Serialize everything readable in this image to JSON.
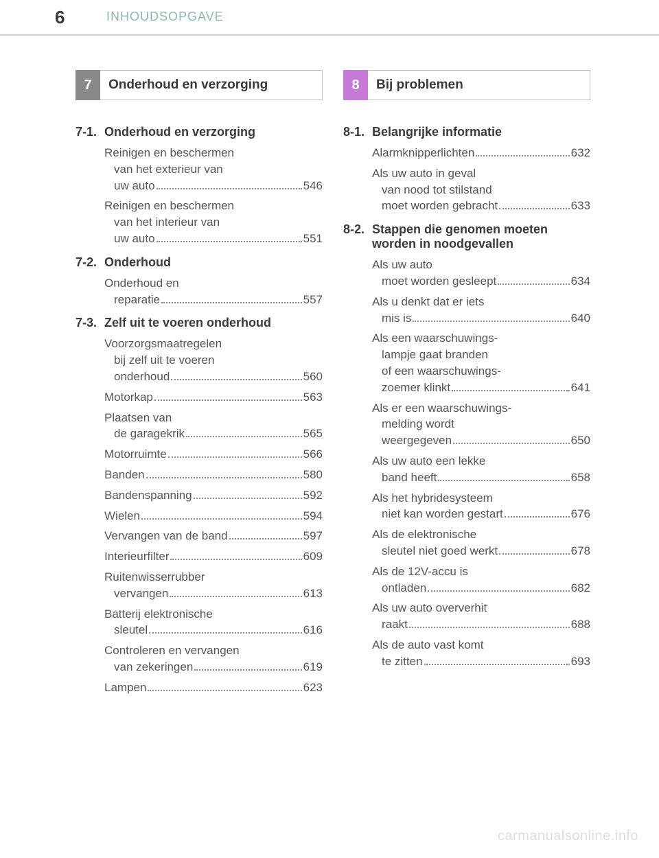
{
  "header": {
    "page_number": "6",
    "title": "INHOUDSOPGAVE"
  },
  "left_chapter": {
    "number": "7",
    "title": "Onderhoud en verzorging",
    "bg_color": "#888888"
  },
  "right_chapter": {
    "number": "8",
    "title": "Bij problemen",
    "bg_color": "#c47ad6"
  },
  "left_sections": [
    {
      "num": "7-1.",
      "label": "Onderhoud en verzorging",
      "entries": [
        {
          "lines": [
            "Reinigen en beschermen",
            "van het exterieur van",
            "uw auto"
          ],
          "page": "546"
        },
        {
          "lines": [
            "Reinigen en beschermen",
            "van het interieur van",
            "uw auto"
          ],
          "page": "551"
        }
      ]
    },
    {
      "num": "7-2.",
      "label": "Onderhoud",
      "entries": [
        {
          "lines": [
            "Onderhoud en",
            "reparatie"
          ],
          "page": "557"
        }
      ]
    },
    {
      "num": "7-3.",
      "label": "Zelf uit te voeren onderhoud",
      "entries": [
        {
          "lines": [
            "Voorzorgsmaatregelen",
            "bij zelf uit te voeren",
            "onderhoud"
          ],
          "page": "560"
        },
        {
          "lines": [
            "Motorkap"
          ],
          "page": "563"
        },
        {
          "lines": [
            "Plaatsen van",
            "de garagekrik"
          ],
          "page": "565"
        },
        {
          "lines": [
            "Motorruimte"
          ],
          "page": "566"
        },
        {
          "lines": [
            "Banden"
          ],
          "page": "580"
        },
        {
          "lines": [
            "Bandenspanning"
          ],
          "page": "592"
        },
        {
          "lines": [
            "Wielen"
          ],
          "page": "594"
        },
        {
          "lines": [
            "Vervangen van de band"
          ],
          "page": "597"
        },
        {
          "lines": [
            "Interieurfilter"
          ],
          "page": "609"
        },
        {
          "lines": [
            "Ruitenwisserrubber",
            "vervangen"
          ],
          "page": "613"
        },
        {
          "lines": [
            "Batterij elektronische",
            "sleutel"
          ],
          "page": "616"
        },
        {
          "lines": [
            "Controleren en vervangen",
            "van zekeringen"
          ],
          "page": "619"
        },
        {
          "lines": [
            "Lampen"
          ],
          "page": "623"
        }
      ]
    }
  ],
  "right_sections": [
    {
      "num": "8-1.",
      "label": "Belangrijke informatie",
      "entries": [
        {
          "lines": [
            "Alarmknipperlichten"
          ],
          "page": "632"
        },
        {
          "lines": [
            "Als uw auto in geval",
            "van nood tot stilstand",
            "moet worden gebracht"
          ],
          "page": "633"
        }
      ]
    },
    {
      "num": "8-2.",
      "label": "Stappen die genomen moeten worden in noodgevallen",
      "entries": [
        {
          "lines": [
            "Als uw auto",
            "moet worden gesleept"
          ],
          "page": "634"
        },
        {
          "lines": [
            "Als u denkt dat er iets",
            "mis is"
          ],
          "page": "640"
        },
        {
          "lines": [
            "Als een waarschuwings-",
            "lampje gaat branden",
            "of een waarschuwings-",
            "zoemer klinkt"
          ],
          "page": "641"
        },
        {
          "lines": [
            "Als er een waarschuwings-",
            "melding wordt",
            "weergegeven"
          ],
          "page": "650"
        },
        {
          "lines": [
            "Als uw auto een lekke",
            "band heeft"
          ],
          "page": "658"
        },
        {
          "lines": [
            "Als het hybridesysteem",
            "niet kan worden gestart"
          ],
          "page": "676"
        },
        {
          "lines": [
            "Als de elektronische",
            "sleutel niet goed werkt"
          ],
          "page": "678"
        },
        {
          "lines": [
            "Als de 12V-accu is",
            "ontladen"
          ],
          "page": "682"
        },
        {
          "lines": [
            "Als uw auto oververhit",
            "raakt"
          ],
          "page": "688"
        },
        {
          "lines": [
            "Als de auto vast komt",
            "te zitten"
          ],
          "page": "693"
        }
      ]
    }
  ],
  "watermark": "carmanualsonline.info"
}
